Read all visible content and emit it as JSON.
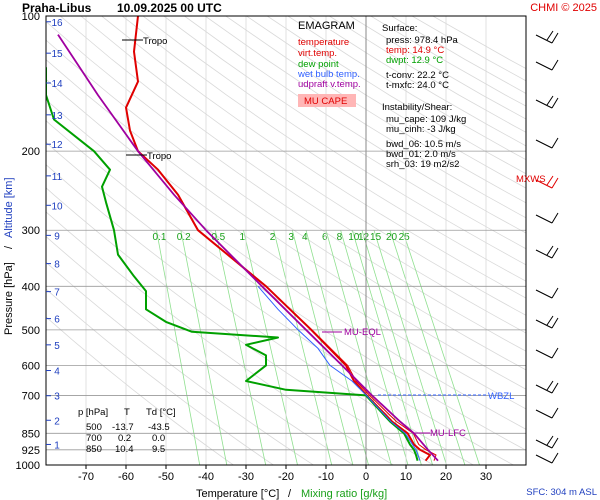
{
  "header": {
    "station": "Praha-Libus",
    "datetime": "10.09.2025 00 UTC",
    "credit": "CHMI © 2025"
  },
  "legend": {
    "title": "EMAGRAM",
    "items": [
      {
        "label": "temperature",
        "color": "#e00000"
      },
      {
        "label": "virt.temp.",
        "color": "#e00000"
      },
      {
        "label": "dew point",
        "color": "#00a000"
      },
      {
        "label": "wet bulb temp.",
        "color": "#3060ff"
      },
      {
        "label": "udpraft v.temp.",
        "color": "#a000a0"
      }
    ],
    "mu_cape_label": "MU CAPE"
  },
  "info": {
    "surface_title": "Surface:",
    "surface": [
      {
        "text": "press: 978.4 hPa",
        "color": "#000000"
      },
      {
        "text": "temp: 14.9 °C",
        "color": "#e00000"
      },
      {
        "text": "dwpt: 12.9 °C",
        "color": "#00a000"
      }
    ],
    "conv": [
      "t-conv: 22.2 °C",
      "t-mxfc: 24.0 °C"
    ],
    "instability_title": "Instability/Shear:",
    "instability": [
      "mu_cape: 109 J/kg",
      "mu_cinh: -3 J/kg",
      "bwd_06: 10.5 m/s",
      "bwd_01: 2.0 m/s",
      "srh_03: 19 m2/s2"
    ]
  },
  "table": {
    "headers": [
      "p [hPa]",
      "T",
      "Td [°C]"
    ],
    "rows": [
      [
        "500",
        "-13.7",
        "-43.5"
      ],
      [
        "700",
        "0.2",
        "0.0"
      ],
      [
        "850",
        "10.4",
        "9.5"
      ]
    ]
  },
  "annotations": {
    "tropo": "Tropo",
    "mu_eql": "MU-EQL",
    "mu_lfc": "MU-LFC",
    "wbzl": "WBZL",
    "mxws": "MXWS",
    "sfc": "SFC: 304 m ASL"
  },
  "axis_labels": {
    "xlabel_temp": "Temperature [°C]",
    "xlabel_sep": "/",
    "xlabel_mix": "Mixing ratio [g/kg]",
    "ylabel_press": "Pressure [hPa]",
    "ylabel_sep": "/",
    "ylabel_alt": "Altitude [km]"
  },
  "chart_data": {
    "type": "line",
    "x_ticks": [
      -70,
      -60,
      -50,
      -40,
      -30,
      -20,
      -10,
      0,
      10,
      20,
      30
    ],
    "y_ticks_pressure": [
      100,
      200,
      300,
      400,
      500,
      600,
      700,
      850,
      925,
      1000
    ],
    "altitude_ticks_km": [
      1,
      2,
      3,
      4,
      5,
      6,
      7,
      8,
      9,
      10,
      11,
      12,
      13,
      14,
      15,
      16
    ],
    "altitude_tick_pressure": [
      900,
      795,
      701,
      616,
      540,
      472,
      411,
      356,
      308,
      264,
      227,
      193,
      166,
      141,
      121,
      103
    ],
    "mixing_ratio_labels": [
      "0.1",
      "0.2",
      "0.5",
      "1",
      "2",
      "3",
      "4",
      "6",
      "8",
      "10",
      "12",
      "15",
      "20",
      "25"
    ],
    "xlim": [
      -80,
      40
    ],
    "ylim_pressure": [
      100,
      1000
    ],
    "series": [
      {
        "name": "temperature",
        "color": "#e00000",
        "p": [
          978,
          950,
          925,
          900,
          850,
          800,
          700,
          650,
          600,
          500,
          400,
          300,
          250,
          220,
          200,
          180,
          160,
          140,
          120,
          100
        ],
        "t": [
          14.9,
          16.0,
          13.5,
          12.0,
          10.4,
          6.5,
          0.2,
          -3.0,
          -5.0,
          -13.7,
          -25.0,
          -42.0,
          -47.0,
          -52.0,
          -57.0,
          -59.0,
          -60.0,
          -57.0,
          -58.0,
          -57.0
        ]
      },
      {
        "name": "virt.temp.",
        "color": "#e00000",
        "p": [
          978,
          950,
          925,
          900,
          850,
          800,
          700,
          650,
          600,
          500,
          400,
          300,
          250,
          220,
          200
        ],
        "t": [
          17.0,
          17.5,
          15.0,
          13.2,
          11.8,
          7.6,
          0.9,
          -2.5,
          -4.6,
          -13.5,
          -24.9,
          -41.9,
          -46.9,
          -51.9,
          -56.9
        ]
      },
      {
        "name": "dew point",
        "color": "#00a000",
        "p": [
          978,
          950,
          925,
          900,
          850,
          800,
          700,
          680,
          650,
          600,
          570,
          540,
          520,
          505,
          480,
          450,
          430,
          410,
          380,
          340,
          300,
          260,
          240,
          220,
          200,
          170,
          150,
          130
        ],
        "t": [
          12.9,
          12.5,
          12.0,
          11.0,
          9.5,
          6.0,
          0.0,
          -20.0,
          -30.0,
          -25.0,
          -25.0,
          -30.0,
          -22.0,
          -43.5,
          -50.0,
          -55.0,
          -55.0,
          -55.0,
          -58.0,
          -62.0,
          -63.0,
          -65.0,
          -66.0,
          -64.0,
          -68.0,
          -78.0,
          -80.0,
          -80.0
        ]
      },
      {
        "name": "wet bulb temp.",
        "color": "#3060ff",
        "p": [
          978,
          925,
          850,
          800,
          700,
          650,
          600,
          550,
          500,
          450,
          400
        ],
        "t": [
          13.5,
          12.5,
          9.8,
          6.2,
          0.1,
          -3.5,
          -9.0,
          -12.0,
          -17.0,
          -22.0,
          -27.0
        ]
      },
      {
        "name": "udpraft v.temp.",
        "color": "#a000a0",
        "p": [
          978,
          925,
          850,
          800,
          700,
          600,
          500,
          400,
          300,
          250,
          200,
          150,
          110
        ],
        "t": [
          18.0,
          15.5,
          12.0,
          8.5,
          1.5,
          -6.0,
          -15.0,
          -26.0,
          -40.0,
          -48.0,
          -57.0,
          -67.0,
          -77.0
        ]
      }
    ]
  }
}
